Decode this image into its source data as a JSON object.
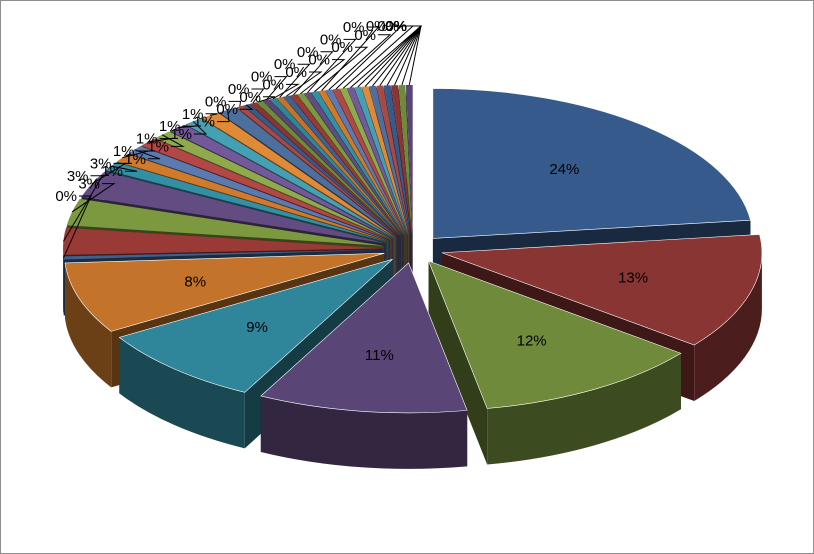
{
  "chart_data": {
    "type": "pie",
    "variant": "3d-exploded",
    "title": "",
    "legend": "none",
    "values": [
      24,
      13,
      12,
      11,
      9,
      8,
      0,
      3,
      3,
      3,
      1,
      1,
      1,
      1,
      1,
      1,
      1,
      1,
      1,
      0,
      0,
      0,
      0,
      0,
      0,
      0,
      0,
      0,
      0,
      0,
      0,
      0,
      0,
      0,
      0,
      0,
      0,
      0,
      0,
      0,
      0,
      0,
      0,
      0
    ],
    "labels": [
      "24%",
      "13%",
      "12%",
      "11%",
      "9%",
      "8%",
      "0%",
      "3%",
      "3%",
      "3%",
      "1%",
      "1%",
      "1%",
      "1%",
      "1%",
      "1%",
      "1%",
      "1%",
      "1%",
      "0%",
      "0%",
      "0%",
      "0%",
      "0%",
      "0%",
      "0%",
      "0%",
      "0%",
      "0%",
      "0%",
      "0%",
      "0%",
      "0%",
      "0%",
      "0%",
      "0%",
      "0%",
      "0%",
      "0%",
      "0%",
      "0%",
      "0%",
      "0%",
      "0%"
    ],
    "colors": [
      "#375a8c",
      "#883533",
      "#6f8a3a",
      "#5a4577",
      "#2f8599",
      "#c4742a",
      "#3e628f",
      "#9a3a37",
      "#7c993f",
      "#624c82",
      "#338fa3",
      "#d07a2c",
      "#5b7ab0",
      "#b24745",
      "#8eaa4c",
      "#73599a",
      "#45a0b3",
      "#e08a38",
      "#4d6f9e",
      "#a54a47"
    ]
  }
}
